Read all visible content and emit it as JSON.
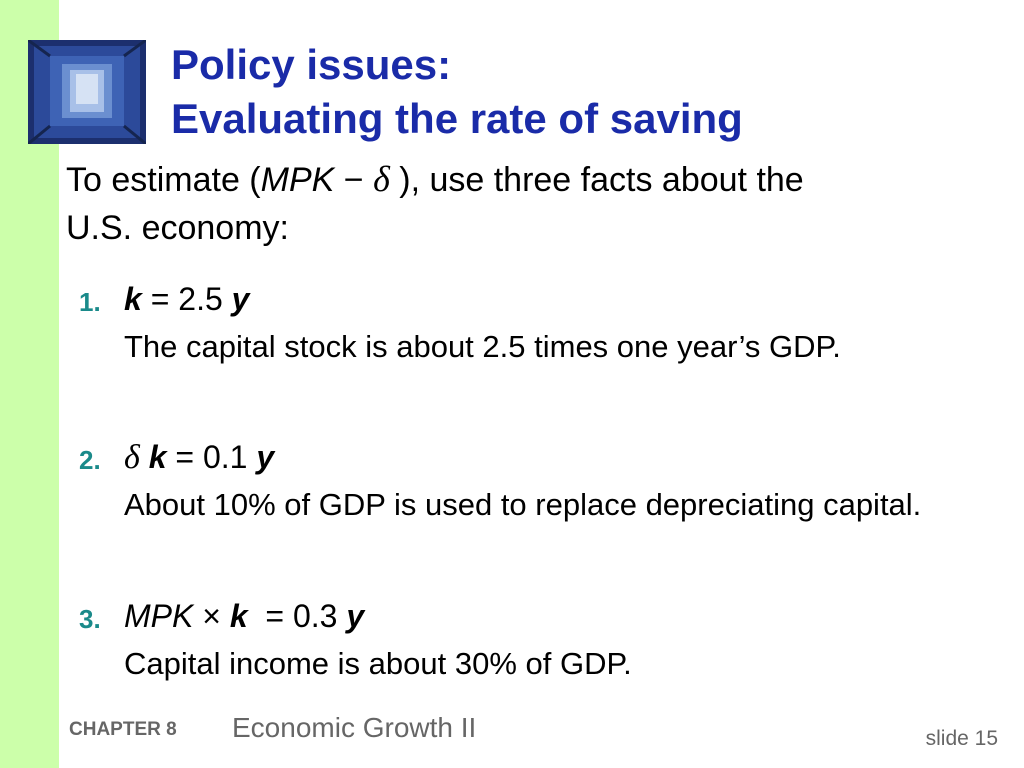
{
  "title": {
    "line1": "Policy issues:",
    "line2": "Evaluating the rate of saving"
  },
  "intro": {
    "before": "To estimate (",
    "mpk": "MPK",
    "minus": " − ",
    "delta": "δ",
    "after": " ), use three facts about the",
    "line2": "U.S. economy:"
  },
  "facts": [
    {
      "number": "1.",
      "k": "k",
      "eq_text": " = 2.5 ",
      "y": "y",
      "desc": "The capital stock is about 2.5 times one year’s GDP."
    },
    {
      "number": "2.",
      "delta": "δ",
      "k": "k",
      "eq_text": " = 0.1 ",
      "y": "y",
      "desc": "About 10% of GDP is used to replace depreciating capital."
    },
    {
      "number": "3.",
      "mpk": "MPK",
      "times": " × ",
      "k": "k",
      "eq_text": "  = 0.3 ",
      "y": "y",
      "desc": "Capital income is about 30% of GDP."
    }
  ],
  "footer": {
    "chapter": "CHAPTER 8",
    "subtitle": "Economic Growth II",
    "slide": "slide 15"
  },
  "colors": {
    "title": "#1a2ba8",
    "number": "#1a8a8a",
    "stripe": "#ccffaa",
    "footer": "#666666"
  }
}
